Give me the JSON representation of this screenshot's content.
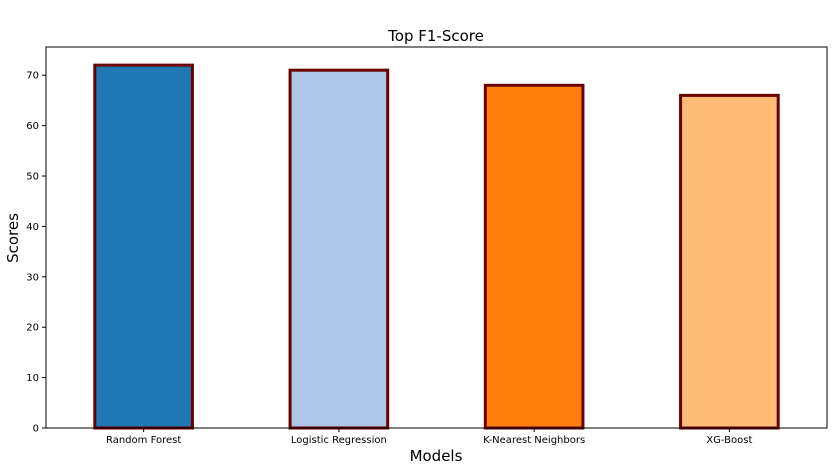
{
  "chart_data": {
    "type": "bar",
    "title": "Top F1-Score",
    "xlabel": "Models",
    "ylabel": "Scores",
    "categories": [
      "Random Forest",
      "Logistic Regression",
      "K-Nearest Neighbors",
      "XG-Boost"
    ],
    "values": [
      72,
      71,
      68,
      66
    ],
    "colors": [
      "#1f77b4",
      "#aec7e8",
      "#ff7f0e",
      "#ffbb78"
    ],
    "edge_color": "#6b0000",
    "ylim": [
      0,
      75.6
    ],
    "yticks": [
      0,
      10,
      20,
      30,
      40,
      50,
      60,
      70
    ],
    "grid": false,
    "legend": "none"
  }
}
